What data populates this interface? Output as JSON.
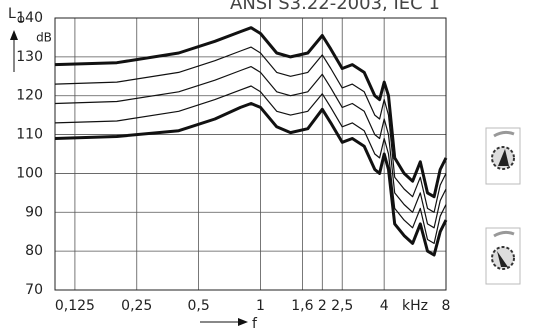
{
  "chart_data": {
    "type": "line",
    "title": "ANSI S3.22-2003, IEC 1",
    "y_label": "L",
    "y_label_sub": "O",
    "y_unit": "dB",
    "x_label": "f",
    "x_unit": "kHz",
    "log_x": true,
    "grid": true,
    "color": "#111111",
    "xlim": [
      0.1,
      8
    ],
    "ylim": [
      70,
      140
    ],
    "xticks": [
      {
        "value": 0.125,
        "label": "0,125"
      },
      {
        "value": 0.25,
        "label": "0,25"
      },
      {
        "value": 0.5,
        "label": "0,5"
      },
      1,
      {
        "value": 1.6,
        "label": "1,6"
      },
      2,
      {
        "value": 2.5,
        "label": "2,5"
      },
      4,
      8
    ],
    "yticks": [
      70,
      80,
      90,
      100,
      110,
      120,
      130,
      140
    ],
    "x": [
      0.1,
      0.2,
      0.4,
      0.6,
      0.8,
      0.9,
      1,
      1.2,
      1.4,
      1.7,
      2,
      2.2,
      2.5,
      2.8,
      3.2,
      3.6,
      3.8,
      4,
      4.2,
      4.5,
      5,
      5.5,
      6,
      6.5,
      7,
      7.5,
      8
    ],
    "series": [
      {
        "values": [
          128,
          128.5,
          131,
          134,
          136.5,
          137.5,
          136,
          131,
          130,
          131,
          135.5,
          132,
          127,
          128,
          126,
          120,
          119,
          123.5,
          120,
          104,
          100,
          98,
          103,
          95,
          94,
          101,
          104
        ]
      },
      {
        "values": [
          123,
          123.5,
          126,
          129,
          131.5,
          132.5,
          131,
          126,
          125,
          126,
          130.5,
          127,
          122,
          123,
          121,
          115,
          114,
          119,
          115,
          99,
          96,
          94,
          99,
          91,
          90,
          97,
          100
        ]
      },
      {
        "values": [
          118,
          118.5,
          121,
          124,
          126.5,
          127.5,
          126,
          121,
          120,
          121,
          125.5,
          122,
          117,
          118,
          116,
          110,
          109,
          114,
          110,
          95,
          92,
          90,
          95,
          87,
          86,
          93,
          96
        ]
      },
      {
        "values": [
          113,
          113.5,
          116,
          119,
          121.5,
          122.5,
          121,
          116,
          115,
          116,
          120.5,
          117,
          112,
          113,
          111,
          105,
          104,
          109,
          105,
          91,
          88,
          86,
          91,
          83,
          82,
          89,
          92
        ]
      },
      {
        "values": [
          109,
          109.5,
          111,
          114,
          117,
          118,
          117,
          112,
          110.5,
          111.5,
          116.5,
          113,
          108,
          109,
          107,
          101,
          100,
          105,
          101,
          87,
          84,
          82,
          87,
          80,
          79,
          85,
          88
        ]
      }
    ]
  }
}
